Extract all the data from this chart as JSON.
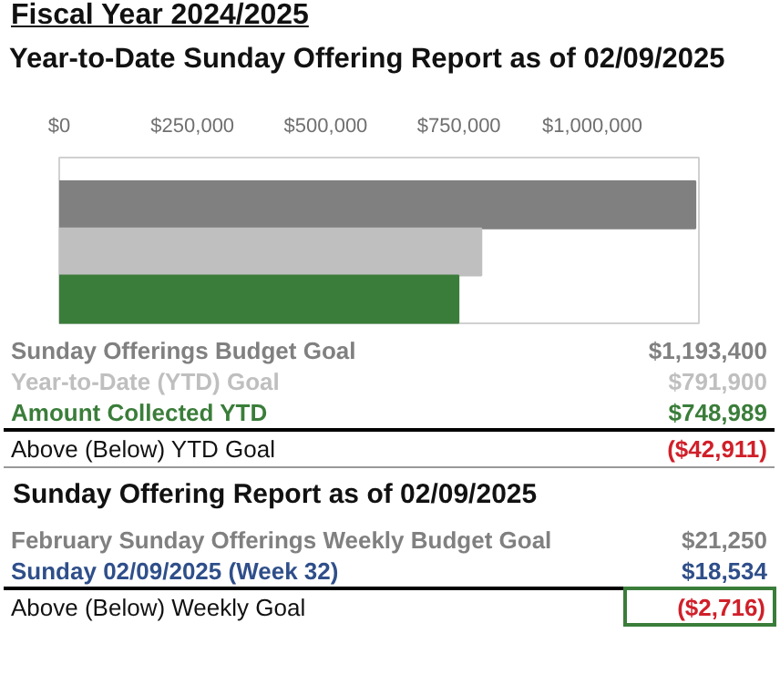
{
  "chart_data": {
    "type": "bar",
    "orientation": "horizontal",
    "title": "Fiscal Year 2024/2025",
    "subtitle": "Year-to-Date Sunday Offering Report as of 02/09/2025",
    "categories": [
      null,
      null,
      null
    ],
    "values": [
      1193400,
      791900,
      748989
    ],
    "colors": [
      "#808080",
      "#bfbfbf",
      "#3a7d3a"
    ],
    "xlim": [
      0,
      1200000
    ],
    "xticks": [
      {
        "value": 0,
        "label": "$0"
      },
      {
        "value": 250000,
        "label": "$250,000"
      },
      {
        "value": 500000,
        "label": "$500,000"
      },
      {
        "value": 750000,
        "label": "$750,000"
      },
      {
        "value": 1000000,
        "label": "$1,000,000"
      }
    ],
    "grid": false,
    "annotations": [
      "Sunday Offerings Budget Goal",
      "$1,193,400",
      "Year-to-Date (YTD) Goal",
      "$791,900",
      "Amount Collected YTD",
      "$748,989",
      "Above (Below) YTD Goal",
      "($42,911)",
      "Sunday Offering Report as of 02/09/2025",
      "February Sunday Offerings Weekly Budget Goal",
      "$21,250",
      "Sunday 02/09/2025 (Week 32)",
      "$18,534",
      "Above (Below) Weekly Goal",
      "($2,716)"
    ]
  }
}
